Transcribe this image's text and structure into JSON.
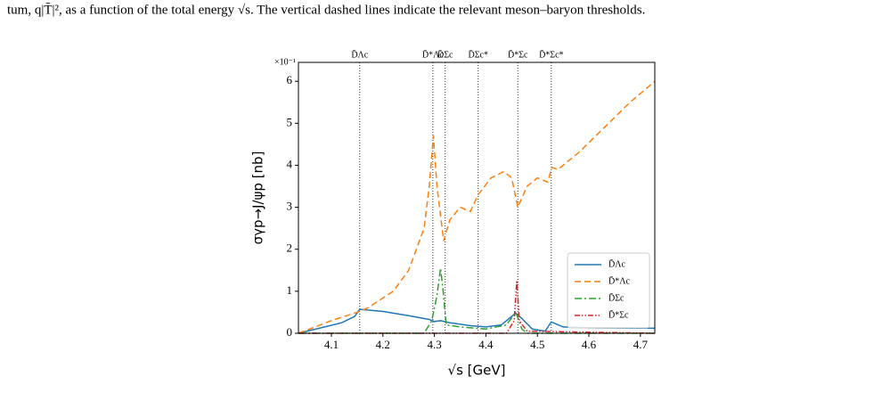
{
  "caption": "tum, q|T̄|², as a function of the total energy √s. The vertical dashed lines indicate the relevant meson–baryon thresholds.",
  "chart_data": {
    "type": "line",
    "x_label": "√s [GeV]",
    "y_label": "σγp→J/ψp [nb]",
    "y_multiplier": "×10⁻¹",
    "xlim": [
      4.036,
      4.728
    ],
    "ylim": [
      0,
      6.45
    ],
    "xticks": [
      4.1,
      4.2,
      4.3,
      4.4,
      4.5,
      4.6,
      4.7
    ],
    "yticks": [
      0,
      1,
      2,
      3,
      4,
      5,
      6
    ],
    "legend": "lower right",
    "thresholds": [
      {
        "label": "D̄Λc",
        "value": 4.155
      },
      {
        "label": "D̄*Λc",
        "value": 4.297
      },
      {
        "label": "D̄Σc",
        "value": 4.321
      },
      {
        "label": "D̄Σc*",
        "value": 4.385
      },
      {
        "label": "D̄*Σc",
        "value": 4.462
      },
      {
        "label": "D̄*Σc*",
        "value": 4.527
      }
    ],
    "series": [
      {
        "name": "D̄Λc",
        "color": "#1f77b4",
        "dash": "",
        "x": [
          4.036,
          4.07,
          4.12,
          4.145,
          4.155,
          4.2,
          4.25,
          4.29,
          4.3,
          4.312,
          4.33,
          4.37,
          4.4,
          4.43,
          4.458,
          4.47,
          4.49,
          4.515,
          4.527,
          4.55,
          4.6,
          4.728
        ],
        "values": [
          0,
          0.1,
          0.25,
          0.4,
          0.57,
          0.52,
          0.42,
          0.33,
          0.28,
          0.3,
          0.25,
          0.18,
          0.15,
          0.2,
          0.48,
          0.35,
          0.1,
          0.05,
          0.27,
          0.15,
          0.13,
          0.12
        ]
      },
      {
        "name": "D̄*Λc",
        "color": "#ff7f0e",
        "dash": "7,4",
        "x": [
          4.036,
          4.1,
          4.15,
          4.17,
          4.22,
          4.25,
          4.28,
          4.29,
          4.298,
          4.305,
          4.318,
          4.33,
          4.35,
          4.37,
          4.385,
          4.41,
          4.435,
          4.45,
          4.462,
          4.48,
          4.5,
          4.52,
          4.528,
          4.54,
          4.58,
          4.63,
          4.68,
          4.728
        ],
        "values": [
          0,
          0.3,
          0.5,
          0.6,
          1.0,
          1.5,
          2.5,
          3.5,
          4.7,
          3.5,
          2.2,
          2.7,
          3.0,
          2.9,
          3.3,
          3.7,
          3.85,
          3.7,
          3.0,
          3.5,
          3.7,
          3.6,
          3.95,
          3.9,
          4.3,
          4.9,
          5.5,
          6.0
        ]
      },
      {
        "name": "D̄Σc",
        "color": "#2ca02c",
        "dash": "8,3,2,3",
        "x": [
          4.036,
          4.28,
          4.295,
          4.305,
          4.312,
          4.317,
          4.323,
          4.35,
          4.4,
          4.44,
          4.458,
          4.47,
          4.48,
          4.728
        ],
        "values": [
          0,
          0,
          0.3,
          0.9,
          1.55,
          1.0,
          0.2,
          0.15,
          0.1,
          0.2,
          0.5,
          0.1,
          0,
          0
        ]
      },
      {
        "name": "D̄*Σc",
        "color": "#d62728",
        "dash": "6,2,1.5,2,1.5,2",
        "x": [
          4.036,
          4.44,
          4.455,
          4.46,
          4.465,
          4.48,
          4.728
        ],
        "values": [
          0,
          0,
          0.3,
          1.25,
          0.3,
          0.05,
          0
        ]
      }
    ]
  }
}
